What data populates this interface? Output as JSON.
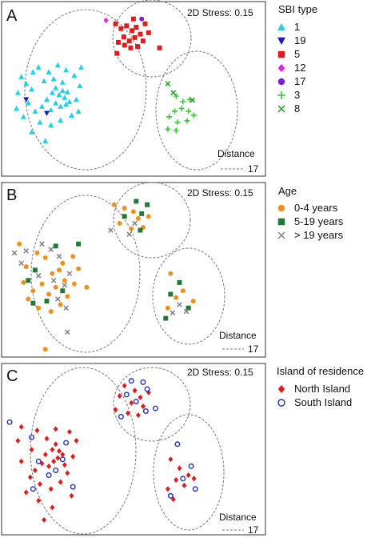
{
  "figure": {
    "panels": [
      {
        "label": "A",
        "stress_label": "2D Stress: 0.15",
        "distance_label": "Distance",
        "scale_value": "17",
        "legend_title": "SBI type",
        "legend": [
          {
            "label": "1",
            "marker": "triangle-up",
            "color": "#19d3e6"
          },
          {
            "label": "19",
            "marker": "triangle-down",
            "color": "#1a1acc"
          },
          {
            "label": "5",
            "marker": "square",
            "color": "#e31a1c"
          },
          {
            "label": "12",
            "marker": "diamond",
            "color": "#e81ee8"
          },
          {
            "label": "17",
            "marker": "circle",
            "color": "#7a1fd6"
          },
          {
            "label": "3",
            "marker": "plus",
            "color": "#33cc33"
          },
          {
            "label": "8",
            "marker": "cross",
            "color": "#1aa01a"
          }
        ]
      },
      {
        "label": "B",
        "stress_label": "2D Stress: 0.15",
        "distance_label": "Distance",
        "scale_value": "17",
        "legend_title": "Age",
        "legend": [
          {
            "label": "0-4 years",
            "marker": "circle",
            "color": "#f0901a"
          },
          {
            "label": "5-19 years",
            "marker": "square",
            "color": "#217a33"
          },
          {
            "label": "> 19 years",
            "marker": "cross",
            "color": "#808080"
          }
        ]
      },
      {
        "label": "C",
        "stress_label": "2D Stress: 0.15",
        "distance_label": "Distance",
        "scale_value": "17",
        "legend_title": "Island of residence",
        "legend": [
          {
            "label": "North Island",
            "marker": "diamond",
            "color": "#e31a1c"
          },
          {
            "label": "South Island",
            "marker": "circle-open",
            "color": "#2233cc"
          }
        ]
      }
    ]
  },
  "chart_data": [
    {
      "type": "scatter",
      "title": "",
      "xlabel": "",
      "ylabel": "",
      "axes_visible": false,
      "stress": 0.15,
      "scale_bar": 17,
      "clusters": 3,
      "series": [
        {
          "name": "1",
          "points": [
            [
              -1.3,
              0.42
            ],
            [
              -1.55,
              0.28
            ],
            [
              -1.48,
              0.18
            ],
            [
              -1.4,
              0.1
            ],
            [
              -1.22,
              0.22
            ],
            [
              -1.1,
              0.05
            ],
            [
              -1.05,
              0.12
            ],
            [
              -1.0,
              0.02
            ],
            [
              -0.95,
              0.08
            ],
            [
              -0.92,
              -0.02
            ],
            [
              -0.88,
              0.06
            ],
            [
              -0.85,
              -0.08
            ],
            [
              -0.9,
              -0.12
            ],
            [
              -0.98,
              -0.15
            ],
            [
              -1.05,
              -0.1
            ],
            [
              -1.12,
              -0.2
            ],
            [
              -1.18,
              -0.05
            ],
            [
              -1.25,
              -0.15
            ],
            [
              -1.35,
              -0.22
            ],
            [
              -1.45,
              -0.1
            ],
            [
              -1.52,
              -0.3
            ],
            [
              -1.28,
              -0.38
            ],
            [
              -1.12,
              -0.42
            ],
            [
              -0.98,
              -0.35
            ],
            [
              -0.82,
              -0.28
            ],
            [
              -0.75,
              -0.05
            ],
            [
              -0.7,
              0.15
            ],
            [
              -0.78,
              0.3
            ],
            [
              -0.9,
              0.38
            ],
            [
              -1.02,
              0.45
            ],
            [
              -1.15,
              0.35
            ],
            [
              -0.72,
              -0.22
            ],
            [
              -1.38,
              0.35
            ],
            [
              -1.6,
              0.05
            ],
            [
              -1.2,
              -0.65
            ],
            [
              -1.4,
              -0.52
            ],
            [
              -0.95,
              0.2
            ],
            [
              -1.08,
              0.25
            ],
            [
              -0.68,
              0.42
            ],
            [
              -1.62,
              -0.18
            ]
          ]
        },
        {
          "name": "19",
          "points": [
            [
              -1.48,
              -0.05
            ],
            [
              -1.18,
              -0.25
            ]
          ]
        },
        {
          "name": "5",
          "points": [
            [
              -0.18,
              1.05
            ],
            [
              -0.1,
              0.98
            ],
            [
              -0.02,
              1.02
            ],
            [
              0.06,
              0.95
            ],
            [
              0.12,
              1.0
            ],
            [
              0.18,
              0.9
            ],
            [
              0.1,
              0.85
            ],
            [
              0.02,
              0.8
            ],
            [
              -0.06,
              0.86
            ],
            [
              -0.14,
              0.78
            ],
            [
              0.22,
              0.8
            ],
            [
              0.14,
              0.72
            ],
            [
              0.04,
              0.7
            ],
            [
              -0.05,
              0.74
            ],
            [
              0.25,
              1.05
            ],
            [
              0.3,
              0.92
            ],
            [
              0.08,
              1.12
            ],
            [
              -0.16,
              0.62
            ],
            [
              0.46,
              0.7
            ]
          ]
        },
        {
          "name": "12",
          "points": [
            [
              -0.32,
              1.1
            ]
          ]
        },
        {
          "name": "17",
          "points": [
            [
              0.2,
              1.12
            ]
          ]
        },
        {
          "name": "3",
          "points": [
            [
              0.7,
              0.0
            ],
            [
              0.8,
              -0.08
            ],
            [
              0.9,
              -0.05
            ],
            [
              0.78,
              -0.18
            ],
            [
              0.68,
              -0.22
            ],
            [
              0.88,
              -0.22
            ],
            [
              0.96,
              -0.28
            ],
            [
              0.6,
              -0.3
            ],
            [
              0.72,
              -0.38
            ],
            [
              0.86,
              -0.36
            ],
            [
              0.58,
              -0.48
            ],
            [
              0.7,
              -0.5
            ]
          ]
        },
        {
          "name": "8",
          "points": [
            [
              0.58,
              0.18
            ],
            [
              0.94,
              -0.06
            ],
            [
              0.66,
              0.05
            ]
          ]
        }
      ]
    },
    {
      "type": "scatter",
      "title": "",
      "xlabel": "",
      "ylabel": "",
      "axes_visible": false,
      "stress": 0.15,
      "scale_bar": 17,
      "clusters": 3,
      "series": [
        {
          "name": "0-4 years",
          "points": [
            [
              -1.58,
              0.48
            ],
            [
              -1.2,
              0.28
            ],
            [
              -1.1,
              0.05
            ],
            [
              -1.0,
              0.1
            ],
            [
              -0.92,
              -0.05
            ],
            [
              -1.05,
              -0.15
            ],
            [
              -1.15,
              -0.25
            ],
            [
              -1.25,
              -0.1
            ],
            [
              -1.38,
              -0.2
            ],
            [
              -1.45,
              -0.32
            ],
            [
              -1.3,
              -0.45
            ],
            [
              -1.12,
              -0.5
            ],
            [
              -0.98,
              -0.4
            ],
            [
              -0.88,
              -0.28
            ],
            [
              -0.78,
              -0.1
            ],
            [
              -0.72,
              0.12
            ],
            [
              -0.8,
              0.3
            ],
            [
              -1.32,
              0.35
            ],
            [
              -1.48,
              0.15
            ],
            [
              -1.52,
              -0.08
            ],
            [
              -0.6,
              -0.15
            ],
            [
              -1.2,
              -1.05
            ],
            [
              -0.2,
              1.05
            ],
            [
              -0.05,
              1.0
            ],
            [
              0.08,
              0.95
            ],
            [
              0.15,
              0.85
            ],
            [
              -0.12,
              0.78
            ],
            [
              0.05,
              0.7
            ],
            [
              0.22,
              0.72
            ],
            [
              0.3,
              0.88
            ],
            [
              0.62,
              0.05
            ],
            [
              0.8,
              -0.2
            ],
            [
              0.7,
              -0.3
            ],
            [
              0.95,
              -0.35
            ],
            [
              0.58,
              -0.45
            ],
            [
              -0.95,
              0.2
            ]
          ]
        },
        {
          "name": "5-19 years",
          "points": [
            [
              -1.05,
              0.45
            ],
            [
              -0.72,
              0.48
            ],
            [
              -1.35,
              0.1
            ],
            [
              -1.45,
              -0.05
            ],
            [
              -0.95,
              -0.2
            ],
            [
              -1.18,
              -0.35
            ],
            [
              -1.38,
              -0.38
            ],
            [
              0.12,
              1.1
            ],
            [
              0.28,
              1.05
            ],
            [
              0.2,
              0.92
            ],
            [
              -0.05,
              0.88
            ],
            [
              0.18,
              0.68
            ],
            [
              0.75,
              -0.08
            ],
            [
              0.62,
              -0.25
            ],
            [
              0.88,
              -0.45
            ],
            [
              0.55,
              -0.6
            ]
          ]
        },
        {
          "name": "> 19 years",
          "points": [
            [
              -1.65,
              0.35
            ],
            [
              -1.48,
              0.38
            ],
            [
              -1.25,
              0.48
            ],
            [
              -1.12,
              0.4
            ],
            [
              -1.0,
              0.3
            ],
            [
              -1.08,
              -0.05
            ],
            [
              -0.92,
              -0.12
            ],
            [
              -0.85,
              0.05
            ],
            [
              -1.3,
              0.02
            ],
            [
              -1.02,
              -0.32
            ],
            [
              -0.9,
              -0.45
            ],
            [
              -1.55,
              0.2
            ],
            [
              -0.88,
              -0.8
            ],
            [
              0.02,
              0.62
            ],
            [
              -0.25,
              0.68
            ],
            [
              0.1,
              0.78
            ],
            [
              0.75,
              -0.4
            ],
            [
              0.85,
              -0.5
            ],
            [
              0.65,
              -0.52
            ]
          ]
        }
      ]
    },
    {
      "type": "scatter",
      "title": "",
      "xlabel": "",
      "ylabel": "",
      "axes_visible": false,
      "stress": 0.15,
      "scale_bar": 17,
      "clusters": 3,
      "series": [
        {
          "name": "North Island",
          "points": [
            [
              -1.55,
              0.45
            ],
            [
              -1.32,
              0.4
            ],
            [
              -1.18,
              0.28
            ],
            [
              -1.05,
              0.2
            ],
            [
              -1.0,
              0.1
            ],
            [
              -0.95,
              0.05
            ],
            [
              -1.02,
              0.0
            ],
            [
              -1.08,
              -0.05
            ],
            [
              -1.15,
              -0.12
            ],
            [
              -1.25,
              -0.08
            ],
            [
              -1.35,
              -0.18
            ],
            [
              -1.42,
              -0.28
            ],
            [
              -1.28,
              -0.38
            ],
            [
              -1.12,
              -0.45
            ],
            [
              -0.98,
              -0.35
            ],
            [
              -0.88,
              -0.22
            ],
            [
              -0.8,
              0.02
            ],
            [
              -0.75,
              0.25
            ],
            [
              -0.85,
              0.38
            ],
            [
              -1.4,
              0.12
            ],
            [
              -1.55,
              -0.05
            ],
            [
              -1.48,
              -0.5
            ],
            [
              -1.3,
              -0.62
            ],
            [
              -1.1,
              -0.72
            ],
            [
              -0.82,
              -0.55
            ],
            [
              -1.22,
              -0.9
            ],
            [
              -1.6,
              0.25
            ],
            [
              -1.05,
              0.42
            ],
            [
              -0.92,
              -0.1
            ],
            [
              -1.2,
              0.05
            ],
            [
              -1.1,
              0.12
            ],
            [
              -0.05,
              1.05
            ],
            [
              0.1,
              0.98
            ],
            [
              0.18,
              0.88
            ],
            [
              -0.12,
              0.9
            ],
            [
              0.05,
              0.8
            ],
            [
              0.22,
              0.75
            ],
            [
              -0.18,
              0.7
            ],
            [
              0.0,
              0.65
            ],
            [
              0.15,
              0.62
            ],
            [
              0.3,
              0.95
            ],
            [
              0.62,
              -0.02
            ],
            [
              0.75,
              -0.15
            ],
            [
              0.88,
              -0.25
            ],
            [
              0.7,
              -0.32
            ],
            [
              0.58,
              -0.45
            ],
            [
              0.82,
              -0.4
            ],
            [
              0.96,
              -0.3
            ],
            [
              0.66,
              -0.6
            ]
          ]
        },
        {
          "name": "South Island",
          "points": [
            [
              -1.72,
              0.52
            ],
            [
              -1.4,
              0.3
            ],
            [
              -1.3,
              -0.05
            ],
            [
              -1.05,
              -0.18
            ],
            [
              -0.95,
              -0.02
            ],
            [
              -1.15,
              -0.25
            ],
            [
              -0.9,
              0.22
            ],
            [
              -1.38,
              -0.45
            ],
            [
              -0.8,
              -0.42
            ],
            [
              0.05,
              1.12
            ],
            [
              0.22,
              1.1
            ],
            [
              0.28,
              1.0
            ],
            [
              -0.02,
              0.92
            ],
            [
              0.12,
              0.82
            ],
            [
              0.26,
              0.68
            ],
            [
              -0.1,
              0.6
            ],
            [
              0.4,
              0.72
            ],
            [
              0.72,
              0.2
            ],
            [
              0.92,
              -0.12
            ],
            [
              0.8,
              -0.3
            ],
            [
              0.98,
              -0.45
            ],
            [
              0.62,
              -0.55
            ]
          ]
        }
      ]
    }
  ]
}
